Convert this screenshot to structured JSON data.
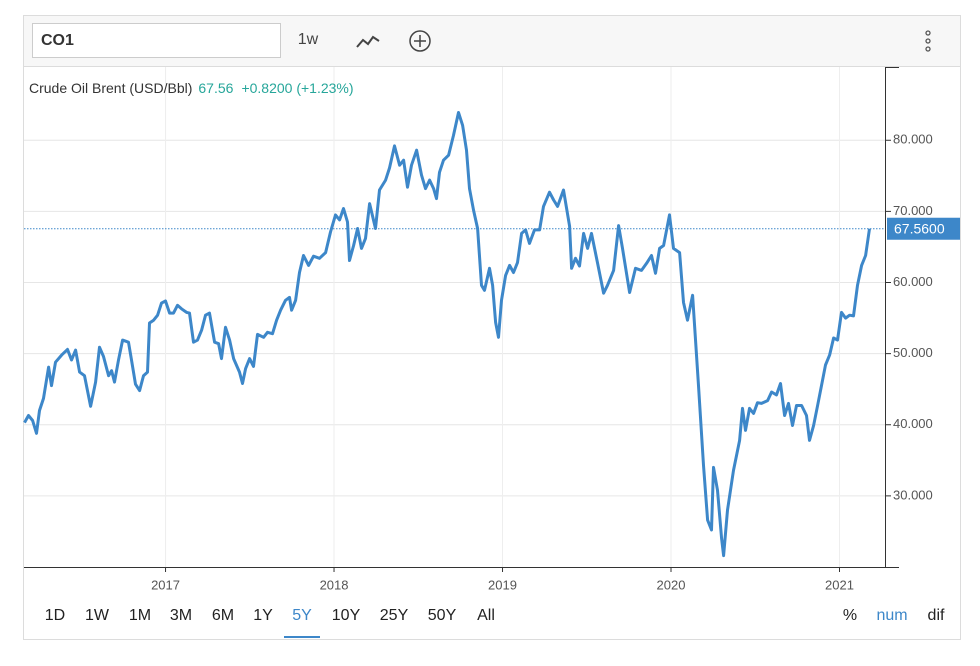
{
  "toolbar": {
    "symbol": "CO1",
    "interval": "1w"
  },
  "ranges": [
    "1D",
    "1W",
    "1M",
    "3M",
    "6M",
    "1Y",
    "5Y",
    "10Y",
    "25Y",
    "50Y",
    "All"
  ],
  "active_range": 6,
  "modes": [
    "%",
    "num",
    "dif"
  ],
  "active_mode": 1,
  "chart_data": {
    "type": "line",
    "title": "Crude Oil Brent (USD/Bbl)",
    "last": "67.56",
    "change": "+0.8200 (+1.23%)",
    "price_line": {
      "value": 67.56,
      "label": "67.5600"
    },
    "xlim": [
      2016.16,
      2021.27
    ],
    "xticks": [
      2017,
      2018,
      2019,
      2020,
      2021
    ],
    "ylim": [
      20,
      90.3
    ],
    "yticks": [
      {
        "value": 30,
        "label": "30.000"
      },
      {
        "value": 40,
        "label": "40.000"
      },
      {
        "value": 50,
        "label": "50.000"
      },
      {
        "value": 60,
        "label": "60.000"
      },
      {
        "value": 70,
        "label": "70.000"
      },
      {
        "value": 80,
        "label": "80.000"
      }
    ],
    "grid": true,
    "x": [
      2016.163,
      2016.187,
      2016.211,
      2016.234,
      2016.252,
      2016.276,
      2016.306,
      2016.323,
      2016.347,
      2016.383,
      2016.418,
      2016.442,
      2016.466,
      2016.49,
      2016.519,
      2016.555,
      2016.585,
      2016.608,
      2016.632,
      2016.662,
      2016.68,
      2016.697,
      2016.721,
      2016.745,
      2016.78,
      2016.798,
      2016.822,
      2016.846,
      2016.869,
      2016.893,
      2016.905,
      2016.929,
      2016.953,
      2016.976,
      2017.0,
      2017.024,
      2017.047,
      2017.071,
      2017.095,
      2017.125,
      2017.142,
      2017.166,
      2017.19,
      2017.214,
      2017.237,
      2017.261,
      2017.291,
      2017.315,
      2017.332,
      2017.356,
      2017.38,
      2017.404,
      2017.439,
      2017.457,
      2017.475,
      2017.499,
      2017.522,
      2017.546,
      2017.582,
      2017.605,
      2017.635,
      2017.659,
      2017.683,
      2017.712,
      2017.736,
      2017.748,
      2017.772,
      2017.795,
      2017.819,
      2017.849,
      2017.878,
      2017.914,
      2017.95,
      2017.979,
      2018.009,
      2018.033,
      2018.056,
      2018.08,
      2018.092,
      2018.116,
      2018.14,
      2018.163,
      2018.187,
      2018.211,
      2018.246,
      2018.27,
      2018.306,
      2018.329,
      2018.359,
      2018.389,
      2018.413,
      2018.436,
      2018.46,
      2018.49,
      2018.519,
      2018.543,
      2018.567,
      2018.591,
      2018.608,
      2018.626,
      2018.65,
      2018.68,
      2018.709,
      2018.739,
      2018.763,
      2018.786,
      2018.804,
      2018.828,
      2018.852,
      2018.875,
      2018.893,
      2018.923,
      2018.941,
      2018.959,
      2018.976,
      2018.994,
      2019.018,
      2019.042,
      2019.065,
      2019.089,
      2019.113,
      2019.137,
      2019.16,
      2019.19,
      2019.22,
      2019.243,
      2019.279,
      2019.303,
      2019.327,
      2019.362,
      2019.398,
      2019.41,
      2019.433,
      2019.457,
      2019.481,
      2019.505,
      2019.528,
      2019.564,
      2019.6,
      2019.623,
      2019.659,
      2019.689,
      2019.712,
      2019.754,
      2019.789,
      2019.825,
      2019.855,
      2019.884,
      2019.908,
      2019.932,
      2019.956,
      2019.991,
      2020.015,
      2020.051,
      2020.074,
      2020.098,
      2020.128,
      2020.163,
      2020.193,
      2020.217,
      2020.24,
      2020.252,
      2020.276,
      2020.3,
      2020.312,
      2020.335,
      2020.371,
      2020.407,
      2020.424,
      2020.442,
      2020.466,
      2020.49,
      2020.513,
      2020.537,
      2020.573,
      2020.597,
      2020.626,
      2020.65,
      2020.674,
      2020.697,
      2020.721,
      2020.745,
      2020.775,
      2020.804,
      2020.822,
      2020.846,
      2020.87,
      2020.893,
      2020.917,
      2020.941,
      2020.965,
      2020.988,
      2021.012,
      2021.036,
      2021.06,
      2021.083,
      2021.107,
      2021.131,
      2021.155,
      2021.178
    ],
    "series": [
      {
        "name": "CO1",
        "color": "#3d87c9",
        "values": [
          40.3,
          41.3,
          40.6,
          38.8,
          42.0,
          43.7,
          48.1,
          45.5,
          48.8,
          49.8,
          50.6,
          49.1,
          50.5,
          47.4,
          46.9,
          42.6,
          46.0,
          50.9,
          49.6,
          46.9,
          47.6,
          46.0,
          49.1,
          51.9,
          51.6,
          49.1,
          45.7,
          44.8,
          46.9,
          47.4,
          54.3,
          54.7,
          55.4,
          57.1,
          57.4,
          55.7,
          55.7,
          56.8,
          56.3,
          55.8,
          55.7,
          51.6,
          51.9,
          53.3,
          55.4,
          55.7,
          51.6,
          51.4,
          49.3,
          53.7,
          51.9,
          49.3,
          47.4,
          45.8,
          47.9,
          49.3,
          48.2,
          52.7,
          52.3,
          53.0,
          52.8,
          54.7,
          56.1,
          57.5,
          57.9,
          56.1,
          57.5,
          61.4,
          63.8,
          62.4,
          63.7,
          63.4,
          64.2,
          67.1,
          69.5,
          68.8,
          70.4,
          68.5,
          63.1,
          65.2,
          67.6,
          64.8,
          66.2,
          71.1,
          67.6,
          73.0,
          74.4,
          76.1,
          79.2,
          76.5,
          77.2,
          73.4,
          76.5,
          78.6,
          75.1,
          73.2,
          74.4,
          73.2,
          71.8,
          75.5,
          77.2,
          77.9,
          80.7,
          83.9,
          82.1,
          78.6,
          73.2,
          70.2,
          67.6,
          59.6,
          58.9,
          62.0,
          59.6,
          54.4,
          52.3,
          57.5,
          61.0,
          62.4,
          61.4,
          62.8,
          66.9,
          67.4,
          65.5,
          67.4,
          67.4,
          70.7,
          72.7,
          71.6,
          70.7,
          73.0,
          67.9,
          62.0,
          63.4,
          62.3,
          66.9,
          64.8,
          66.9,
          62.7,
          58.5,
          59.6,
          61.7,
          68.0,
          64.8,
          58.6,
          62.0,
          61.7,
          62.7,
          63.8,
          61.3,
          64.8,
          65.2,
          69.5,
          64.8,
          64.2,
          57.2,
          54.7,
          58.2,
          45.5,
          34.3,
          26.6,
          25.2,
          34.0,
          30.8,
          24.0,
          21.6,
          28.0,
          33.6,
          37.8,
          42.3,
          39.2,
          42.3,
          41.6,
          43.1,
          43.0,
          43.4,
          44.6,
          44.2,
          45.8,
          41.3,
          43.0,
          39.9,
          42.7,
          42.7,
          41.3,
          37.8,
          39.9,
          42.7,
          45.5,
          48.4,
          49.8,
          52.2,
          51.9,
          55.8,
          55.0,
          55.4,
          55.3,
          59.6,
          62.4,
          63.8,
          67.56
        ]
      }
    ]
  }
}
